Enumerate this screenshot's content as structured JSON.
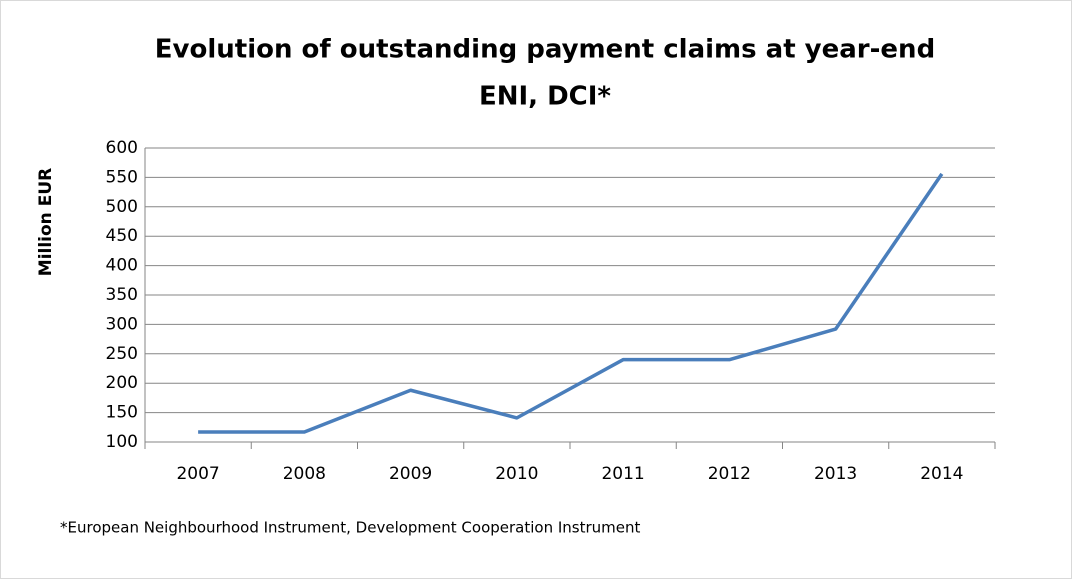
{
  "chart_data": {
    "type": "line",
    "title": "Evolution of outstanding payment claims at year-end",
    "subtitle": "ENI, DCI*",
    "y_label": "Million EUR",
    "note": "*European Neighbourhood Instrument, Development Cooperation Instrument",
    "categories": [
      "2007",
      "2008",
      "2009",
      "2010",
      "2011",
      "2012",
      "2013",
      "2014"
    ],
    "series": [
      {
        "name": "Outstanding payment claims",
        "color": "#4a7ebb",
        "values": [
          117,
          117,
          188,
          141,
          240,
          240,
          292,
          556
        ]
      }
    ],
    "ylim": [
      100,
      600
    ],
    "yticks": [
      100,
      150,
      200,
      250,
      300,
      350,
      400,
      450,
      500,
      550,
      600
    ],
    "grid": true
  }
}
